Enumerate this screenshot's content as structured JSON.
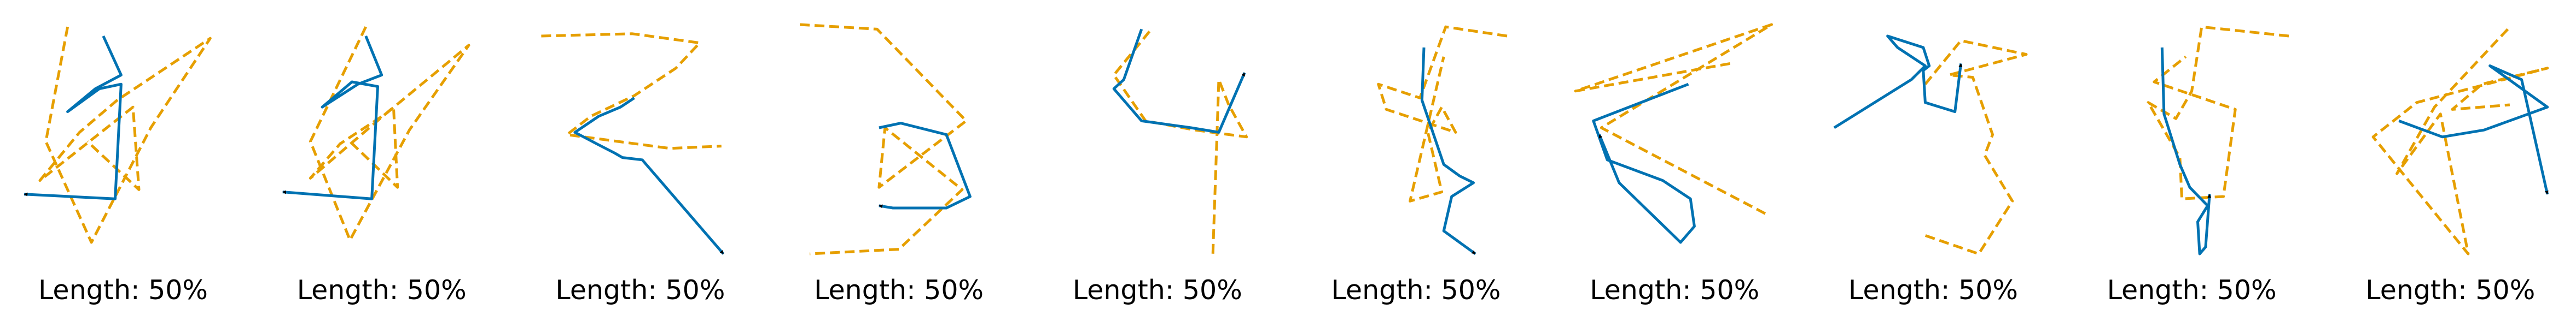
{
  "colors": {
    "path": "#0072B2",
    "reference": "#E69F00",
    "arrow_head": "#000000",
    "background": "#ffffff"
  },
  "chart_data": [
    {
      "type": "line",
      "caption": "Length: 50%",
      "series": [
        {
          "role": "reference",
          "style": "dashed",
          "x": [
            0.22,
            0.11,
            0.34,
            0.64,
            0.94,
            0.47,
            0.28,
            0.08,
            0.55,
            0.58,
            0.32
          ],
          "y": [
            0.99,
            0.49,
            0.05,
            0.55,
            0.94,
            0.67,
            0.53,
            0.32,
            0.64,
            0.28,
            0.49
          ]
        },
        {
          "role": "path",
          "style": "solid",
          "x": [
            0.4,
            0.49,
            0.36,
            0.22,
            0.38,
            0.49,
            0.46,
            0.0
          ],
          "y": [
            0.95,
            0.78,
            0.72,
            0.62,
            0.72,
            0.74,
            0.24,
            0.26
          ]
        }
      ]
    },
    {
      "type": "line",
      "caption": "Length: 50%",
      "series": [
        {
          "role": "reference",
          "style": "dashed",
          "x": [
            0.42,
            0.14,
            0.34,
            0.64,
            0.94,
            0.52,
            0.29,
            0.14,
            0.56,
            0.58,
            0.34
          ],
          "y": [
            0.99,
            0.49,
            0.06,
            0.54,
            0.91,
            0.61,
            0.48,
            0.33,
            0.64,
            0.29,
            0.49
          ]
        },
        {
          "role": "path",
          "style": "solid",
          "x": [
            0.42,
            0.5,
            0.38,
            0.2,
            0.35,
            0.48,
            0.45,
            0.0
          ],
          "y": [
            0.95,
            0.78,
            0.74,
            0.64,
            0.75,
            0.73,
            0.24,
            0.27
          ]
        }
      ]
    },
    {
      "type": "line",
      "caption": "Length: 50%",
      "series": [
        {
          "role": "reference",
          "style": "dashed",
          "x": [
            0.0,
            0.46,
            0.8,
            0.68,
            0.47,
            0.25,
            0.13,
            0.65,
            0.91
          ],
          "y": [
            0.95,
            0.96,
            0.92,
            0.81,
            0.69,
            0.6,
            0.52,
            0.46,
            0.47
          ]
        },
        {
          "role": "path",
          "style": "solid",
          "x": [
            0.47,
            0.4,
            0.29,
            0.17,
            0.28,
            0.37,
            0.41,
            0.51,
            0.92
          ],
          "y": [
            0.68,
            0.64,
            0.6,
            0.53,
            0.48,
            0.44,
            0.42,
            0.41,
            0.0
          ]
        }
      ]
    },
    {
      "type": "line",
      "caption": "Length: 50%",
      "series": [
        {
          "role": "reference",
          "style": "dashed",
          "x": [
            0.0,
            0.39,
            0.84,
            0.4,
            0.43,
            0.82,
            0.5,
            0.05
          ],
          "y": [
            1.0,
            0.98,
            0.58,
            0.29,
            0.55,
            0.28,
            0.02,
            0.0
          ]
        },
        {
          "role": "path",
          "style": "solid",
          "x": [
            0.4,
            0.51,
            0.74,
            0.86,
            0.74,
            0.52,
            0.47,
            0.4
          ],
          "y": [
            0.55,
            0.57,
            0.52,
            0.25,
            0.2,
            0.2,
            0.2,
            0.21
          ]
        }
      ]
    },
    {
      "type": "line",
      "caption": "Length: 50%",
      "series": [
        {
          "role": "reference",
          "style": "dashed",
          "x": [
            0.46,
            0.28,
            0.44,
            0.69,
            0.95,
            0.86,
            0.81,
            0.8,
            0.78
          ],
          "y": [
            0.97,
            0.78,
            0.58,
            0.54,
            0.51,
            0.65,
            0.76,
            0.5,
            0.0
          ]
        },
        {
          "role": "path",
          "style": "solid",
          "x": [
            0.42,
            0.33,
            0.28,
            0.42,
            0.67,
            0.81,
            0.94
          ],
          "y": [
            0.98,
            0.76,
            0.72,
            0.58,
            0.55,
            0.53,
            0.79
          ]
        }
      ]
    },
    {
      "type": "line",
      "caption": "Length: 50%",
      "series": [
        {
          "role": "reference",
          "style": "dashed",
          "x": [
            0.96,
            0.65,
            0.52,
            0.31,
            0.35,
            0.7,
            0.63,
            0.56,
            0.63,
            0.47,
            0.64
          ],
          "y": [
            0.95,
            0.99,
            0.68,
            0.74,
            0.63,
            0.53,
            0.64,
            0.53,
            0.27,
            0.23,
            0.86
          ]
        },
        {
          "role": "path",
          "style": "solid",
          "x": [
            0.54,
            0.53,
            0.64,
            0.72,
            0.79,
            0.68,
            0.64,
            0.8
          ],
          "y": [
            0.9,
            0.67,
            0.39,
            0.34,
            0.31,
            0.25,
            0.1,
            0.0
          ]
        }
      ]
    },
    {
      "type": "line",
      "caption": "Length: 50%",
      "series": [
        {
          "role": "reference",
          "style": "dashed",
          "x": [
            0.78,
            0.0,
            0.99,
            0.13,
            0.55,
            0.97
          ],
          "y": [
            0.83,
            0.71,
            1.0,
            0.55,
            0.36,
            0.17
          ]
        },
        {
          "role": "path",
          "style": "solid",
          "x": [
            0.57,
            0.09,
            0.16,
            0.44,
            0.58,
            0.6,
            0.53,
            0.22,
            0.12
          ],
          "y": [
            0.74,
            0.58,
            0.41,
            0.32,
            0.24,
            0.12,
            0.05,
            0.31,
            0.52
          ]
        }
      ]
    },
    {
      "type": "line",
      "caption": "Length: 50%",
      "series": [
        {
          "role": "reference",
          "style": "dashed",
          "x": [
            0.46,
            0.64,
            0.97,
            0.58,
            0.7,
            0.8,
            0.76,
            0.9,
            0.73,
            0.46
          ],
          "y": [
            0.74,
            0.93,
            0.87,
            0.78,
            0.77,
            0.52,
            0.43,
            0.23,
            0.0,
            0.08
          ]
        },
        {
          "role": "path",
          "style": "solid",
          "x": [
            0.0,
            0.39,
            0.46,
            0.32,
            0.27,
            0.45,
            0.48,
            0.45,
            0.46,
            0.61,
            0.64
          ],
          "y": [
            0.55,
            0.76,
            0.82,
            0.9,
            0.95,
            0.9,
            0.82,
            0.8,
            0.66,
            0.62,
            0.83
          ]
        }
      ]
    },
    {
      "type": "line",
      "caption": "Length: 50%",
      "series": [
        {
          "role": "reference",
          "style": "dashed",
          "x": [
            0.99,
            0.55,
            0.5,
            0.42,
            0.28,
            0.44,
            0.45,
            0.66,
            0.72,
            0.31,
            0.47
          ],
          "y": [
            0.95,
            0.99,
            0.71,
            0.59,
            0.66,
            0.42,
            0.24,
            0.25,
            0.63,
            0.75,
            0.86
          ]
        },
        {
          "role": "path",
          "style": "solid",
          "x": [
            0.35,
            0.36,
            0.44,
            0.49,
            0.58,
            0.53,
            0.54,
            0.57,
            0.59
          ],
          "y": [
            0.9,
            0.61,
            0.39,
            0.29,
            0.21,
            0.14,
            0.0,
            0.03,
            0.26
          ]
        }
      ]
    },
    {
      "type": "line",
      "caption": "Length: 50%",
      "series": [
        {
          "role": "reference",
          "style": "dashed",
          "x": [
            0.79,
            0.42,
            0.23,
            0.45,
            0.59,
            0.11,
            0.33,
            0.99,
            0.66,
            0.51,
            0.8
          ],
          "y": [
            0.98,
            0.64,
            0.35,
            0.61,
            0.0,
            0.51,
            0.66,
            0.81,
            0.74,
            0.63,
            0.65
          ]
        },
        {
          "role": "path",
          "style": "solid",
          "x": [
            0.24,
            0.46,
            0.67,
            0.99,
            0.7,
            0.86,
            0.99
          ],
          "y": [
            0.58,
            0.51,
            0.54,
            0.64,
            0.82,
            0.76,
            0.26
          ]
        }
      ]
    }
  ]
}
